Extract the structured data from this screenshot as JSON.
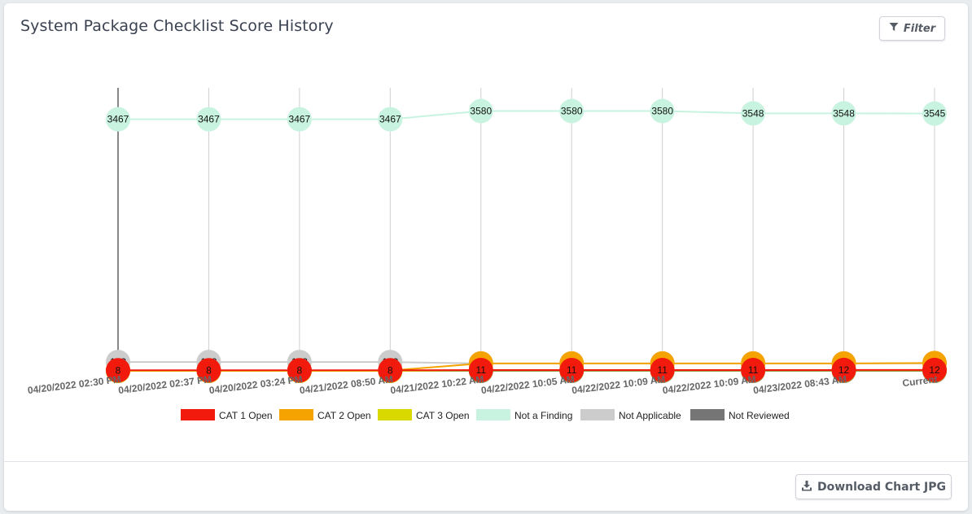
{
  "card": {
    "title": "System Package Checklist Score History",
    "filter_label": "Filter",
    "filter_icon": "filter-icon",
    "download_label": "Download Chart JPG",
    "download_icon": "download-icon"
  },
  "chart_data": {
    "type": "line",
    "categories": [
      "04/20/2022 02:30 PM",
      "04/20/2022 02:37 PM",
      "04/20/2022 03:24 PM",
      "04/21/2022 08:50 AM",
      "04/21/2022 10:22 AM",
      "04/22/2022 10:05 AM",
      "04/22/2022 10:09 AM",
      "04/22/2022 10:09 AM",
      "04/23/2022 08:43 AM",
      "Current"
    ],
    "series": [
      {
        "name": "CAT 1 Open",
        "color": "#f21a0c",
        "values": [
          8,
          8,
          8,
          8,
          11,
          11,
          11,
          11,
          12,
          12
        ]
      },
      {
        "name": "CAT 2 Open",
        "color": "#f4a300",
        "values": [
          4,
          4,
          4,
          4,
          102,
          102,
          102,
          102,
          102,
          108
        ]
      },
      {
        "name": "CAT 3 Open",
        "color": "#d9d900",
        "values": [
          0,
          0,
          0,
          0,
          7,
          7,
          7,
          7,
          7,
          7
        ]
      },
      {
        "name": "Not a Finding",
        "color": "#c9f3e1",
        "values": [
          3467,
          3467,
          3467,
          3467,
          3580,
          3580,
          3580,
          3548,
          3548,
          3545
        ]
      },
      {
        "name": "Not Applicable",
        "color": "#cccccc",
        "values": [
          122,
          122,
          122,
          122,
          102,
          102,
          102,
          102,
          102,
          102
        ]
      },
      {
        "name": "Not Reviewed",
        "color": "#757575",
        "values": [
          0,
          0,
          0,
          0,
          0,
          0,
          0,
          0,
          0,
          0
        ]
      }
    ],
    "ylim": [
      0,
      3900
    ],
    "grid": "vertical",
    "legend": "bottom"
  }
}
